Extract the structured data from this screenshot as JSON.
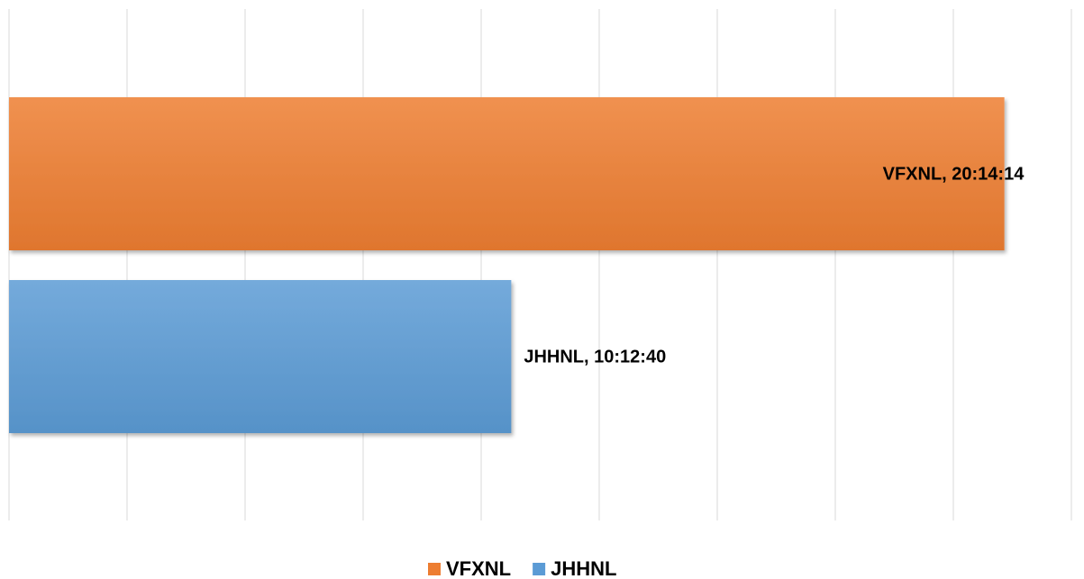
{
  "chart_data": {
    "type": "bar",
    "orientation": "horizontal",
    "categories": [
      null
    ],
    "series": [
      {
        "name": "VFXNL",
        "color": "#ed7d31",
        "values": [
          20.237222
        ],
        "value_labels": [
          "VFXNL, 20:14:14"
        ]
      },
      {
        "name": "JHHNL",
        "color": "#5b9bd5",
        "values": [
          10.211111
        ],
        "value_labels": [
          "JHHNL, 10:12:40"
        ]
      }
    ],
    "xlim": [
      0,
      21.6
    ],
    "xticks": [
      0,
      2.4,
      4.8,
      7.2,
      9.6,
      12,
      14.4,
      16.8,
      19.2,
      21.6
    ],
    "grid": true,
    "legend": "bottom"
  }
}
